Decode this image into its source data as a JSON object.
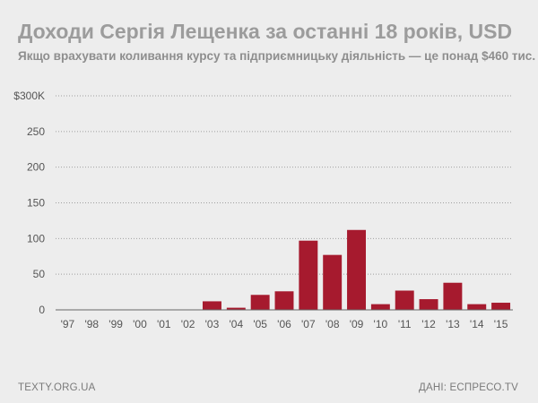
{
  "footer": {
    "source_left": "TEXTY.ORG.UA",
    "source_right": "ДАНІ: ЕСПРЕСО.TV"
  },
  "colors": {
    "bar": "#a61a2e",
    "grid": "#a0a0a0",
    "tick_text": "#555555"
  },
  "chart_data": {
    "type": "bar",
    "title": "Доходи Сергія Лещенка за останні 18 років, USD",
    "subtitle": "Якщо врахувати коливання курсу та підприємницьку діяльність — це понад $460 тис.",
    "xlabel": "",
    "ylabel": "",
    "categories": [
      "'97",
      "'98",
      "'99",
      "'00",
      "'01",
      "'02",
      "'03",
      "'04",
      "'05",
      "'06",
      "'07",
      "'08",
      "'09",
      "'10",
      "'11",
      "'12",
      "'13",
      "'14",
      "'15"
    ],
    "values": [
      0.5,
      0.5,
      0.5,
      0.5,
      0.5,
      0.5,
      12,
      3,
      21,
      26,
      97,
      77,
      112,
      8,
      27,
      15,
      38,
      8,
      10
    ],
    "ylim": [
      0,
      300
    ],
    "yticks": [
      {
        "value": 0,
        "label": "0"
      },
      {
        "value": 50,
        "label": "50"
      },
      {
        "value": 100,
        "label": "100"
      },
      {
        "value": 150,
        "label": "150"
      },
      {
        "value": 200,
        "label": "200"
      },
      {
        "value": 250,
        "label": "250"
      },
      {
        "value": 300,
        "label": "$300K"
      }
    ],
    "grid": true
  }
}
